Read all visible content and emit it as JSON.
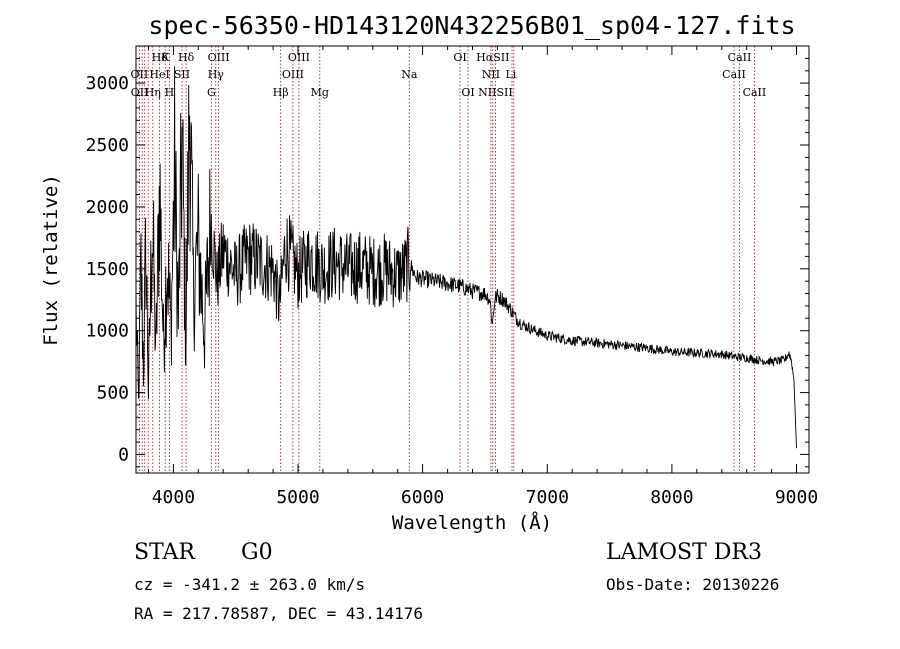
{
  "chart_data": {
    "type": "line",
    "title": "spec-56350-HD143120N432256B01_sp04-127.fits",
    "xlabel": "Wavelength (Å)",
    "ylabel": "Flux (relative)",
    "xlim": [
      3700,
      9100
    ],
    "ylim": [
      -150,
      3300
    ],
    "xticks": [
      "4000",
      "5000",
      "6000",
      "7000",
      "8000",
      "9000"
    ],
    "yticks": [
      "0",
      "500",
      "1000",
      "1500",
      "2000",
      "2500",
      "3000"
    ],
    "xtick_values": [
      4000,
      5000,
      6000,
      7000,
      8000,
      9000
    ],
    "ytick_values": [
      0,
      500,
      1000,
      1500,
      2000,
      2500,
      3000
    ],
    "series": [
      {
        "name": "flux",
        "x": [
          3700,
          3720,
          3740,
          3760,
          3780,
          3800,
          3830,
          3860,
          3890,
          3920,
          3950,
          3980,
          4010,
          4040,
          4070,
          4100,
          4130,
          4160,
          4200,
          4250,
          4300,
          4350,
          4400,
          4500,
          4600,
          4700,
          4800,
          4850,
          4900,
          5000,
          5100,
          5200,
          5300,
          5400,
          5500,
          5600,
          5700,
          5800,
          5850,
          5890,
          5950,
          6000,
          6100,
          6200,
          6300,
          6400,
          6500,
          6540,
          6560,
          6580,
          6600,
          6650,
          6700,
          6750,
          6800,
          6900,
          7000,
          7200,
          7400,
          7600,
          7800,
          8000,
          8200,
          8400,
          8500,
          8600,
          8700,
          8800,
          8900,
          8940,
          8960,
          8980,
          9000
        ],
        "values": [
          1200,
          400,
          1500,
          700,
          1700,
          500,
          1900,
          800,
          2200,
          900,
          1600,
          1000,
          2300,
          1100,
          2500,
          900,
          2900,
          1300,
          1700,
          1000,
          1900,
          1400,
          1650,
          1450,
          1600,
          1550,
          1500,
          1200,
          1700,
          1450,
          1600,
          1500,
          1550,
          1500,
          1520,
          1480,
          1500,
          1450,
          1480,
          1550,
          1430,
          1420,
          1400,
          1380,
          1360,
          1320,
          1300,
          1250,
          1050,
          1260,
          1280,
          1250,
          1180,
          1100,
          1050,
          1000,
          960,
          920,
          900,
          880,
          860,
          830,
          820,
          810,
          790,
          780,
          760,
          750,
          760,
          820,
          750,
          600,
          50
        ]
      }
    ],
    "line_labels": [
      {
        "label": "Hδ",
        "x": 3890,
        "row": 1
      },
      {
        "label": "K",
        "x": 3934,
        "row": 1
      },
      {
        "label": "Hδ",
        "x": 4102,
        "row": 1
      },
      {
        "label": "OIII",
        "x": 4363,
        "row": 1
      },
      {
        "label": "OIII",
        "x": 5007,
        "row": 1
      },
      {
        "label": "OI",
        "x": 6300,
        "row": 1
      },
      {
        "label": "HαSII",
        "x": 6563,
        "row": 1
      },
      {
        "label": "CaII",
        "x": 8542,
        "row": 1
      },
      {
        "label": "OII",
        "x": 3727,
        "row": 2
      },
      {
        "label": "HeI",
        "x": 3889,
        "row": 2
      },
      {
        "label": "SII",
        "x": 4069,
        "row": 2
      },
      {
        "label": "Hγ",
        "x": 4340,
        "row": 2
      },
      {
        "label": "OIII",
        "x": 4959,
        "row": 2
      },
      {
        "label": "Na",
        "x": 5893,
        "row": 2
      },
      {
        "label": "NII",
        "x": 6548,
        "row": 2
      },
      {
        "label": "Li",
        "x": 6708,
        "row": 2
      },
      {
        "label": "CaII",
        "x": 8498,
        "row": 2
      },
      {
        "label": "OII",
        "x": 3729,
        "row": 3
      },
      {
        "label": "Hη",
        "x": 3835,
        "row": 3
      },
      {
        "label": "H",
        "x": 3968,
        "row": 3
      },
      {
        "label": "G",
        "x": 4305,
        "row": 3
      },
      {
        "label": "Hβ",
        "x": 4861,
        "row": 3
      },
      {
        "label": "Mg",
        "x": 5175,
        "row": 3
      },
      {
        "label": "OI",
        "x": 6364,
        "row": 3
      },
      {
        "label": "NIISII",
        "x": 6584,
        "row": 3
      },
      {
        "label": "CaII",
        "x": 8662,
        "row": 3
      }
    ],
    "line_positions": [
      3727,
      3750,
      3770,
      3798,
      3835,
      3889,
      3934,
      3968,
      4069,
      4102,
      4305,
      4340,
      4363,
      4861,
      4959,
      5007,
      5175,
      5893,
      6300,
      6364,
      6548,
      6563,
      6584,
      6717,
      6731,
      8498,
      8542,
      8662
    ]
  },
  "info": {
    "object_class": "STAR",
    "subclass": "G0",
    "survey": "LAMOST DR3",
    "redshift": "cz = -341.2 ± 263.0 km/s",
    "obs_date": "Obs-Date: 20130226",
    "coords": "RA = 217.78587, DEC =  43.14176"
  }
}
